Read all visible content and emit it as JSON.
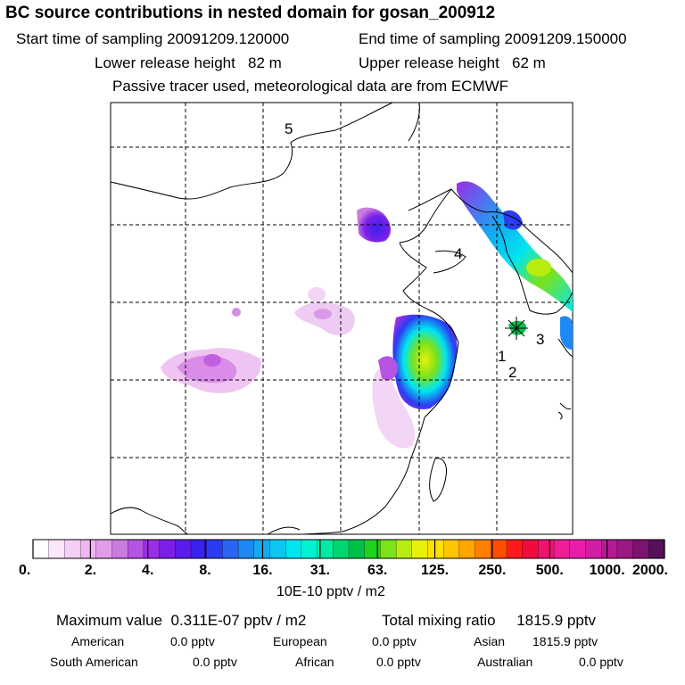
{
  "header": {
    "title": "BC  source contributions in nested domain for gosan_200912",
    "start_label": "Start time of sampling",
    "start_value": "20091209.120000",
    "end_label": "End time of sampling",
    "end_value": "20091209.150000",
    "lower_label": "Lower release height",
    "lower_value": "82 m",
    "upper_label": "Upper release height",
    "upper_value": "62 m",
    "tracer_line": "Passive tracer used, meteorological data are from ECMWF"
  },
  "map": {
    "markers": [
      {
        "label": "5"
      },
      {
        "label": "4"
      },
      {
        "label": "3"
      },
      {
        "label": "1"
      },
      {
        "label": "2"
      }
    ],
    "receptor": "gosan"
  },
  "colorbar": {
    "ticks": [
      "0.",
      "2.",
      "4.",
      "8.",
      "16.",
      "31.",
      "63.",
      "125.",
      "250.",
      "500.",
      "1000.",
      "2000."
    ],
    "unit": "10E-10 pptv / m2",
    "colors": [
      "#ffffff",
      "#fbe6fb",
      "#f6cff6",
      "#f0b6f1",
      "#e19ce6",
      "#c97be0",
      "#b554e3",
      "#9a2ee6",
      "#7a1fe8",
      "#5b1bea",
      "#3a22ee",
      "#2b3cf0",
      "#2a64f2",
      "#1d89f2",
      "#14aaf2",
      "#0dc6f0",
      "#00e6f0",
      "#00f2d2",
      "#00eaa3",
      "#00d670",
      "#00c04a",
      "#1fd21f",
      "#7ce21a",
      "#b7ec10",
      "#e8f00c",
      "#ffe000",
      "#ffc400",
      "#ffa500",
      "#ff7f00",
      "#ff4e00",
      "#ff1a1a",
      "#f00b3c",
      "#f0136e",
      "#f01e96",
      "#e81eab",
      "#d21ea5",
      "#b81a96",
      "#9b1784",
      "#7c1370",
      "#55105a"
    ]
  },
  "stats": {
    "max_label": "Maximum value",
    "max_value": "0.311E-07 pptv / m2",
    "total_label": "Total mixing ratio",
    "total_value": "1815.9 pptv",
    "regions": [
      {
        "name": "American",
        "value": "0.0 pptv"
      },
      {
        "name": "European",
        "value": "0.0 pptv"
      },
      {
        "name": "Asian",
        "value": "1815.9 pptv"
      },
      {
        "name": "South American",
        "value": "0.0 pptv"
      },
      {
        "name": "African",
        "value": "0.0 pptv"
      },
      {
        "name": "Australian",
        "value": "0.0 pptv"
      }
    ]
  }
}
